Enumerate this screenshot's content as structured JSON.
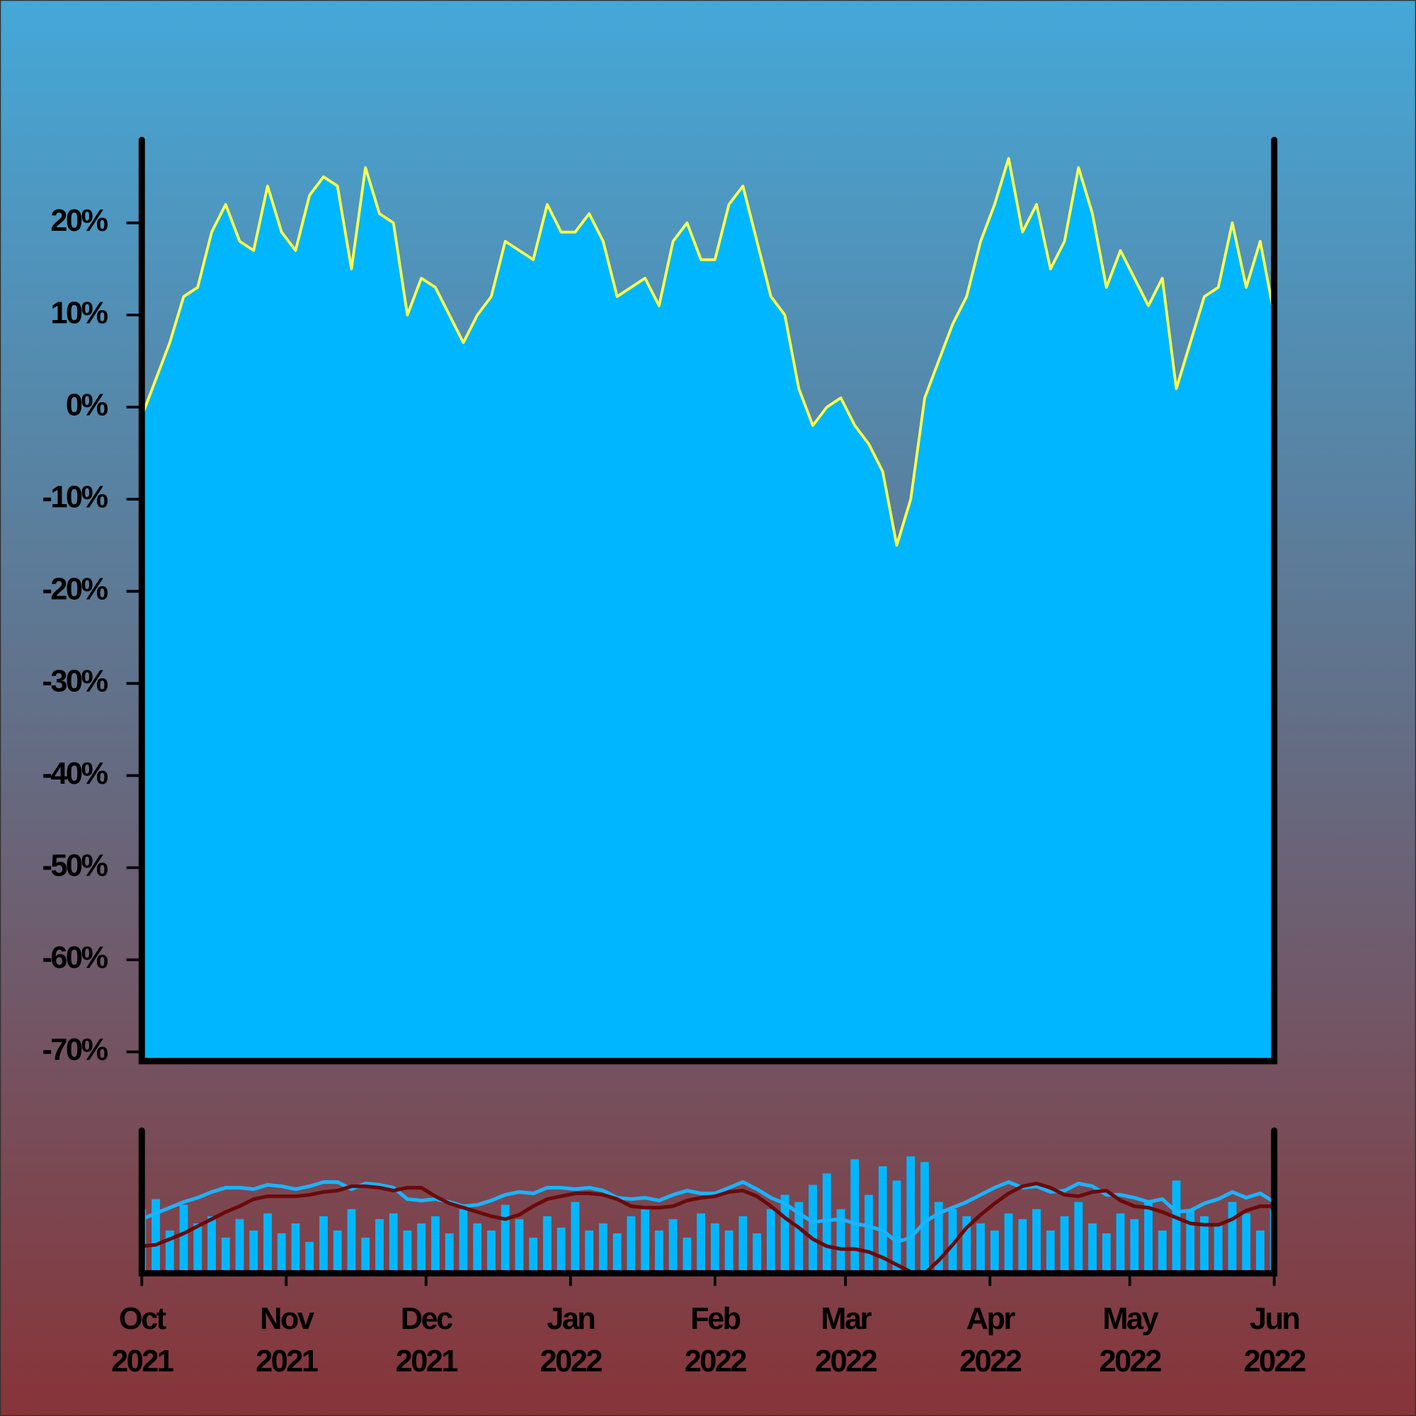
{
  "chart_data": [
    {
      "type": "area",
      "x": [
        "2021-10-01",
        "2021-10-04",
        "2021-10-07",
        "2021-10-10",
        "2021-10-13",
        "2021-10-16",
        "2021-10-19",
        "2021-10-22",
        "2021-10-25",
        "2021-10-28",
        "2021-10-31",
        "2021-11-03",
        "2021-11-06",
        "2021-11-09",
        "2021-11-12",
        "2021-11-15",
        "2021-11-18",
        "2021-11-21",
        "2021-11-24",
        "2021-11-27",
        "2021-11-30",
        "2021-12-03",
        "2021-12-06",
        "2021-12-09",
        "2021-12-12",
        "2021-12-15",
        "2021-12-18",
        "2021-12-21",
        "2021-12-24",
        "2021-12-27",
        "2021-12-30",
        "2022-01-02",
        "2022-01-05",
        "2022-01-08",
        "2022-01-11",
        "2022-01-14",
        "2022-01-17",
        "2022-01-20",
        "2022-01-23",
        "2022-01-26",
        "2022-01-29",
        "2022-02-01",
        "2022-02-04",
        "2022-02-07",
        "2022-02-10",
        "2022-02-13",
        "2022-02-16",
        "2022-02-19",
        "2022-02-22",
        "2022-02-25",
        "2022-02-28",
        "2022-03-03",
        "2022-03-06",
        "2022-03-09",
        "2022-03-12",
        "2022-03-15",
        "2022-03-18",
        "2022-03-21",
        "2022-03-24",
        "2022-03-27",
        "2022-03-30",
        "2022-04-02",
        "2022-04-05",
        "2022-04-08",
        "2022-04-11",
        "2022-04-14",
        "2022-04-17",
        "2022-04-20",
        "2022-04-23",
        "2022-04-26",
        "2022-04-29",
        "2022-05-02",
        "2022-05-05",
        "2022-05-08",
        "2022-05-11",
        "2022-05-14",
        "2022-05-17",
        "2022-05-20",
        "2022-05-23",
        "2022-05-26",
        "2022-05-29",
        "2022-06-01"
      ],
      "values": [
        -1,
        3,
        7,
        12,
        13,
        19,
        22,
        18,
        17,
        24,
        19,
        17,
        23,
        25,
        24,
        15,
        26,
        21,
        20,
        10,
        14,
        13,
        10,
        7,
        10,
        12,
        18,
        17,
        16,
        22,
        19,
        19,
        21,
        18,
        12,
        13,
        14,
        11,
        18,
        20,
        16,
        16,
        22,
        24,
        18,
        12,
        10,
        2,
        -2,
        0,
        1,
        -2,
        -4,
        -7,
        -15,
        -10,
        1,
        5,
        9,
        12,
        18,
        22,
        27,
        19,
        22,
        15,
        18,
        26,
        21,
        13,
        17,
        14,
        11,
        14,
        2,
        7,
        12,
        13,
        20,
        13,
        18,
        10
      ],
      "color": "#00b7ff",
      "line_color": "#ffff4d",
      "xlim": [
        "2021-10-01",
        "2022-06-01"
      ],
      "ylim": [
        -71,
        29
      ],
      "yticks": [
        {
          "value": 20,
          "label": "20%"
        },
        {
          "value": 10,
          "label": "10%"
        },
        {
          "value": 0,
          "label": "0%"
        },
        {
          "value": -10,
          "label": "-10%"
        },
        {
          "value": -20,
          "label": "-20%"
        },
        {
          "value": -30,
          "label": "-30%"
        },
        {
          "value": -40,
          "label": "-40%"
        },
        {
          "value": -50,
          "label": "-50%"
        },
        {
          "value": -60,
          "label": "-60%"
        },
        {
          "value": -70,
          "label": "-70%"
        }
      ]
    },
    {
      "type": "bar",
      "xlim": [
        "2021-10-01",
        "2022-06-01"
      ],
      "ylim": [
        0,
        100
      ],
      "xticks": [
        {
          "value": "2021-10-01",
          "label": "Oct 2021"
        },
        {
          "value": "2021-11-01",
          "label": "Nov 2021"
        },
        {
          "value": "2021-12-01",
          "label": "Dec 2021"
        },
        {
          "value": "2022-01-01",
          "label": "Jan 2022"
        },
        {
          "value": "2022-02-01",
          "label": "Feb 2022"
        },
        {
          "value": "2022-03-01",
          "label": "Mar 2022"
        },
        {
          "value": "2022-04-01",
          "label": "Apr 2022"
        },
        {
          "value": "2022-05-01",
          "label": "May 2022"
        },
        {
          "value": "2022-06-01",
          "label": "Jun 2022"
        }
      ],
      "series": [
        {
          "type": "bar",
          "color": "#00b7ff",
          "values": [
            45,
            52,
            30,
            48,
            35,
            40,
            25,
            38,
            30,
            42,
            28,
            35,
            22,
            40,
            30,
            45,
            25,
            38,
            42,
            30,
            35,
            40,
            28,
            45,
            35,
            30,
            48,
            38,
            25,
            40,
            32,
            50,
            30,
            35,
            28,
            40,
            45,
            30,
            38,
            25,
            42,
            35,
            30,
            40,
            28,
            45,
            55,
            50,
            62,
            70,
            45,
            80,
            55,
            75,
            65,
            82,
            78,
            50,
            45,
            40,
            35,
            30,
            42,
            38,
            45,
            30,
            40,
            50,
            35,
            28,
            42,
            38,
            50,
            30,
            65,
            45,
            40,
            35,
            50,
            42,
            30,
            45
          ]
        },
        {
          "type": "line",
          "color": "#1ab4ff",
          "values": [
            38,
            42,
            46,
            50,
            53,
            57,
            60,
            60,
            59,
            62,
            61,
            59,
            61,
            64,
            64,
            59,
            63,
            62,
            60,
            52,
            51,
            52,
            50,
            47,
            48,
            51,
            55,
            57,
            56,
            60,
            60,
            59,
            60,
            58,
            53,
            52,
            53,
            51,
            55,
            58,
            56,
            56,
            60,
            64,
            59,
            53,
            49,
            42,
            36,
            37,
            38,
            35,
            33,
            30,
            22,
            25,
            36,
            42,
            46,
            50,
            55,
            60,
            64,
            60,
            61,
            57,
            58,
            63,
            61,
            55,
            55,
            53,
            50,
            52,
            43,
            44,
            49,
            52,
            57,
            53,
            56,
            50
          ]
        },
        {
          "type": "line",
          "color": "#6b0a0a",
          "values": [
            19,
            20,
            24,
            28,
            33,
            38,
            43,
            47,
            52,
            54,
            54,
            54,
            55,
            57,
            58,
            61,
            61,
            60,
            58,
            60,
            60,
            54,
            49,
            46,
            43,
            40,
            38,
            41,
            47,
            52,
            54,
            56,
            56,
            55,
            52,
            47,
            46,
            46,
            47,
            51,
            53,
            54,
            57,
            58,
            54,
            47,
            39,
            32,
            24,
            19,
            17,
            17,
            15,
            11,
            6,
            1,
            0,
            9,
            20,
            32,
            41,
            49,
            56,
            61,
            63,
            60,
            55,
            54,
            57,
            58,
            51,
            47,
            46,
            43,
            39,
            35,
            34,
            34,
            38,
            44,
            47,
            47
          ]
        }
      ]
    }
  ]
}
